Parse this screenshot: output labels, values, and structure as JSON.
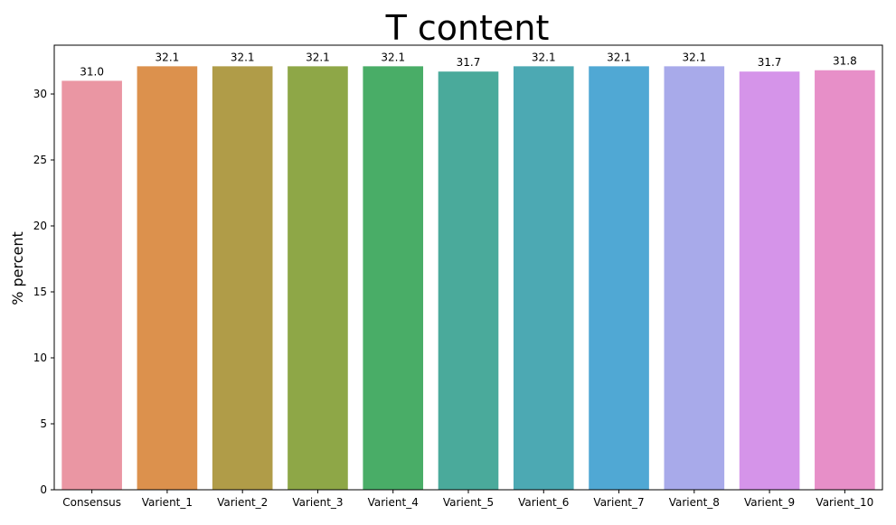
{
  "chart_data": {
    "type": "bar",
    "title": "T content",
    "xlabel": "",
    "ylabel": "% percent",
    "categories": [
      "Consensus",
      "Varient_1",
      "Varient_2",
      "Varient_3",
      "Varient_4",
      "Varient_5",
      "Varient_6",
      "Varient_7",
      "Varient_8",
      "Varient_9",
      "Varient_10"
    ],
    "values": [
      31.0,
      32.1,
      32.1,
      32.1,
      32.1,
      31.7,
      32.1,
      32.1,
      32.1,
      31.7,
      31.8
    ],
    "value_labels": [
      "31.0",
      "32.1",
      "32.1",
      "32.1",
      "32.1",
      "31.7",
      "32.1",
      "32.1",
      "32.1",
      "31.7",
      "31.8"
    ],
    "colors": [
      "#ea96a3",
      "#dc914d",
      "#b09c48",
      "#8ea747",
      "#49ad67",
      "#4aaa9b",
      "#4ca9b3",
      "#50a8d4",
      "#a8aaea",
      "#d594e9",
      "#e78fc8"
    ],
    "ylim": [
      0,
      33.7
    ],
    "yticks": [
      0,
      5,
      10,
      15,
      20,
      25,
      30
    ],
    "grid": false,
    "legend": "none"
  }
}
